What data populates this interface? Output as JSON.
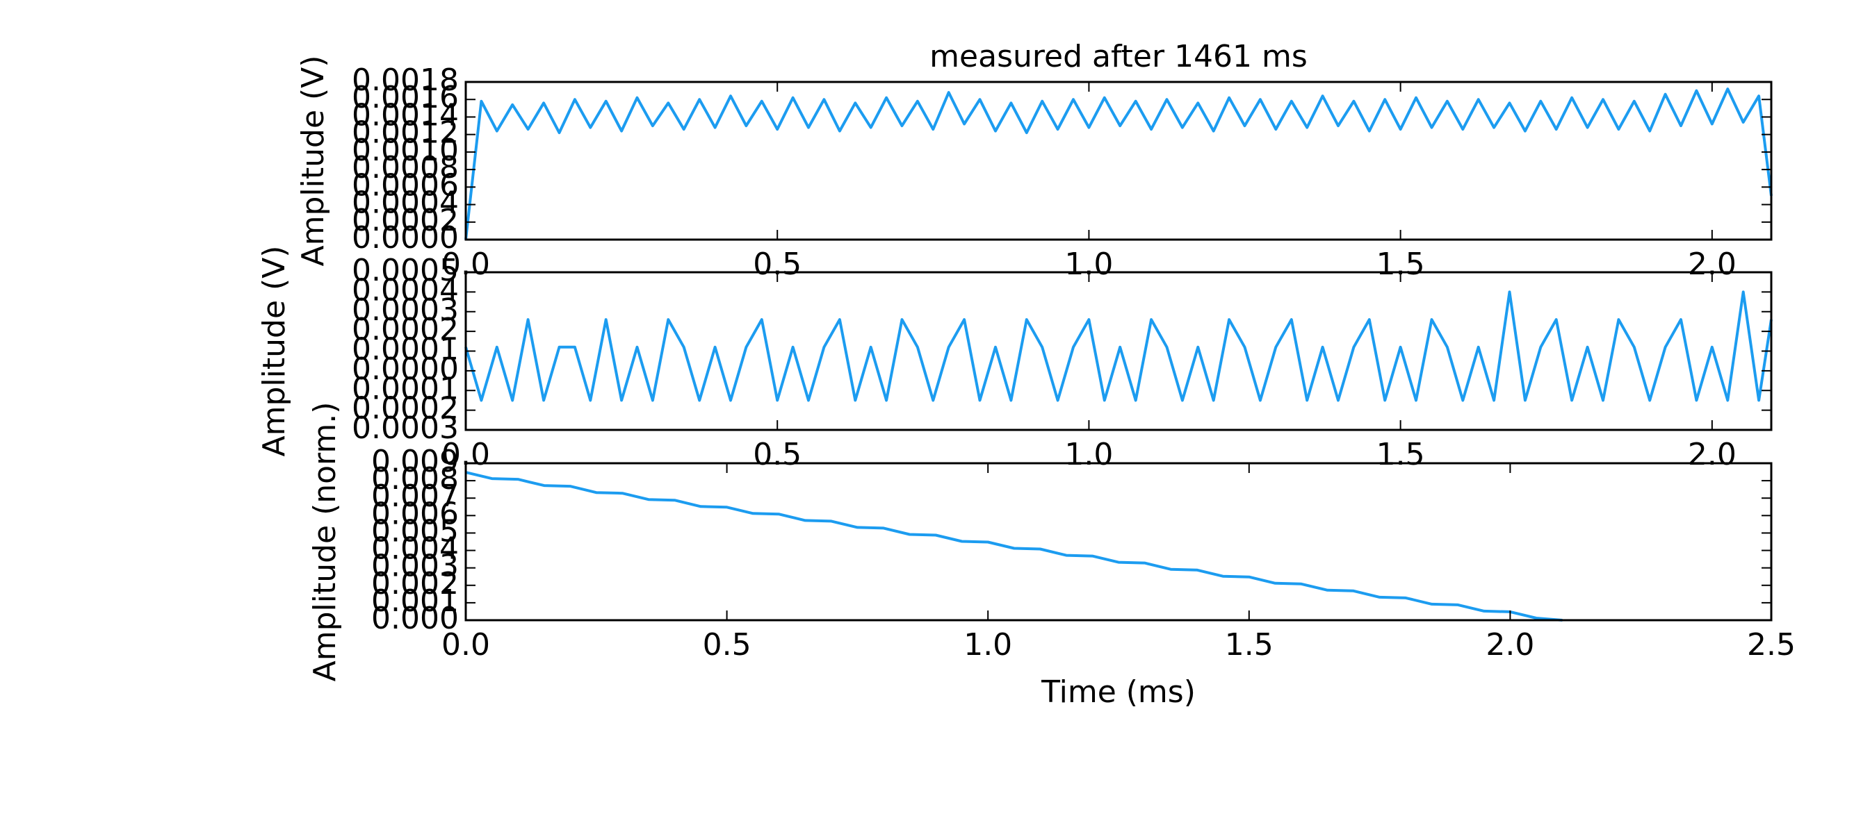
{
  "chart_data": [
    {
      "type": "line",
      "title": "measured after 1461 ms",
      "ylabel": "Amplitude (V)",
      "color": "#1c9cf0",
      "xlim": [
        0,
        2.095
      ],
      "ylim": [
        0,
        0.0018
      ],
      "xticks": [
        {
          "value": 0,
          "label": "0.0"
        },
        0.5,
        {
          "value": 1,
          "label": "1.0"
        },
        1.5,
        {
          "value": 2,
          "label": "2.0"
        }
      ],
      "yticks": [
        {
          "value": 0,
          "label": "0.0000"
        },
        0.0002,
        0.0004,
        0.0006,
        0.0008,
        {
          "value": 0.001,
          "label": "0.0010"
        },
        0.0012,
        0.0014,
        0.0016,
        0.0018
      ],
      "x": [
        0,
        0.025,
        0.05,
        0.075,
        0.1,
        0.125,
        0.15,
        0.175,
        0.2,
        0.225,
        0.25,
        0.275,
        0.3,
        0.325,
        0.35,
        0.375,
        0.4,
        0.425,
        0.45,
        0.475,
        0.5,
        0.525,
        0.55,
        0.575,
        0.6,
        0.625,
        0.65,
        0.675,
        0.7,
        0.725,
        0.75,
        0.775,
        0.8,
        0.825,
        0.85,
        0.875,
        0.9,
        0.925,
        0.95,
        0.975,
        1,
        1.025,
        1.05,
        1.075,
        1.1,
        1.125,
        1.15,
        1.175,
        1.2,
        1.225,
        1.25,
        1.275,
        1.3,
        1.325,
        1.35,
        1.375,
        1.4,
        1.425,
        1.45,
        1.475,
        1.5,
        1.525,
        1.55,
        1.575,
        1.6,
        1.625,
        1.65,
        1.675,
        1.7,
        1.725,
        1.75,
        1.775,
        1.8,
        1.825,
        1.85,
        1.875,
        1.9,
        1.925,
        1.95,
        1.975,
        2,
        2.025,
        2.05,
        2.075,
        2.095
      ],
      "values": [
        0,
        0.00158,
        0.00124,
        0.00154,
        0.00126,
        0.00156,
        0.00122,
        0.0016,
        0.00128,
        0.00158,
        0.00124,
        0.00162,
        0.0013,
        0.00156,
        0.00126,
        0.0016,
        0.00128,
        0.00164,
        0.0013,
        0.00158,
        0.00126,
        0.00162,
        0.00128,
        0.0016,
        0.00124,
        0.00156,
        0.00128,
        0.00162,
        0.0013,
        0.00158,
        0.00126,
        0.00168,
        0.00132,
        0.0016,
        0.00124,
        0.00156,
        0.00122,
        0.00158,
        0.00126,
        0.0016,
        0.00128,
        0.00162,
        0.0013,
        0.00158,
        0.00126,
        0.0016,
        0.00128,
        0.00156,
        0.00124,
        0.00162,
        0.0013,
        0.0016,
        0.00126,
        0.00158,
        0.00128,
        0.00164,
        0.0013,
        0.00158,
        0.00124,
        0.0016,
        0.00126,
        0.00162,
        0.00128,
        0.00158,
        0.00126,
        0.0016,
        0.00128,
        0.00156,
        0.00124,
        0.00158,
        0.00126,
        0.00162,
        0.00128,
        0.0016,
        0.00126,
        0.00158,
        0.00124,
        0.00166,
        0.0013,
        0.0017,
        0.00132,
        0.00172,
        0.00134,
        0.00164,
        0.0005
      ]
    },
    {
      "type": "line",
      "ylabel": "Amplitude (V)",
      "color": "#1c9cf0",
      "xlim": [
        0,
        2.095
      ],
      "ylim": [
        -0.0003,
        0.0005
      ],
      "xticks": [
        {
          "value": 0,
          "label": "0.0"
        },
        0.5,
        {
          "value": 1,
          "label": "1.0"
        },
        1.5,
        {
          "value": 2,
          "label": "2.0"
        }
      ],
      "yticks": [
        {
          "value": -0.0003,
          "label": "0.0003"
        },
        {
          "value": -0.0002,
          "label": "0.0002"
        },
        {
          "value": -0.0001,
          "label": "0.0001"
        },
        {
          "value": 0,
          "label": "0.0000"
        },
        0.0001,
        0.0002,
        0.0003,
        0.0004,
        0.0005
      ],
      "x": [
        0,
        0.025,
        0.05,
        0.075,
        0.1,
        0.125,
        0.15,
        0.175,
        0.2,
        0.225,
        0.25,
        0.275,
        0.3,
        0.325,
        0.35,
        0.375,
        0.4,
        0.425,
        0.45,
        0.475,
        0.5,
        0.525,
        0.55,
        0.575,
        0.6,
        0.625,
        0.65,
        0.675,
        0.7,
        0.725,
        0.75,
        0.775,
        0.8,
        0.825,
        0.85,
        0.875,
        0.9,
        0.925,
        0.95,
        0.975,
        1,
        1.025,
        1.05,
        1.075,
        1.1,
        1.125,
        1.15,
        1.175,
        1.2,
        1.225,
        1.25,
        1.275,
        1.3,
        1.325,
        1.35,
        1.375,
        1.4,
        1.425,
        1.45,
        1.475,
        1.5,
        1.525,
        1.55,
        1.575,
        1.6,
        1.625,
        1.65,
        1.675,
        1.7,
        1.725,
        1.75,
        1.775,
        1.8,
        1.825,
        1.85,
        1.875,
        1.9,
        1.925,
        1.95,
        1.975,
        2,
        2.025,
        2.05,
        2.075,
        2.095
      ],
      "values": [
        0.00012,
        -0.00015,
        0.00012,
        -0.00015,
        0.00026,
        -0.00015,
        0.00012,
        0.00012,
        -0.00015,
        0.00026,
        -0.00015,
        0.00012,
        -0.00015,
        0.00026,
        0.00012,
        -0.00015,
        0.00012,
        -0.00015,
        0.00012,
        0.00026,
        -0.00015,
        0.00012,
        -0.00015,
        0.00012,
        0.00026,
        -0.00015,
        0.00012,
        -0.00015,
        0.00026,
        0.00012,
        -0.00015,
        0.00012,
        0.00026,
        -0.00015,
        0.00012,
        -0.00015,
        0.00026,
        0.00012,
        -0.00015,
        0.00012,
        0.00026,
        -0.00015,
        0.00012,
        -0.00015,
        0.00026,
        0.00012,
        -0.00015,
        0.00012,
        -0.00015,
        0.00026,
        0.00012,
        -0.00015,
        0.00012,
        0.00026,
        -0.00015,
        0.00012,
        -0.00015,
        0.00012,
        0.00026,
        -0.00015,
        0.00012,
        -0.00015,
        0.00026,
        0.00012,
        -0.00015,
        0.00012,
        -0.00015,
        0.0004,
        -0.00015,
        0.00012,
        0.00026,
        -0.00015,
        0.00012,
        -0.00015,
        0.00026,
        0.00012,
        -0.00015,
        0.00012,
        0.00026,
        -0.00015,
        0.00012,
        -0.00015,
        0.0004,
        -0.00015,
        0.00026
      ]
    },
    {
      "type": "line",
      "ylabel": "Amplitude (norm.)",
      "xlabel": "Time (ms)",
      "color": "#1c9cf0",
      "xlim": [
        0,
        2.5
      ],
      "ylim": [
        0,
        0.009
      ],
      "xticks": [
        {
          "value": 0,
          "label": "0.0"
        },
        0.5,
        {
          "value": 1,
          "label": "1.0"
        },
        1.5,
        {
          "value": 2,
          "label": "2.0"
        },
        2.5
      ],
      "yticks": [
        {
          "value": 0,
          "label": "0.000"
        },
        0.001,
        0.002,
        0.003,
        0.004,
        0.005,
        0.006,
        0.007,
        0.008,
        0.009
      ],
      "x": [
        0,
        0.05,
        0.1,
        0.15,
        0.2,
        0.25,
        0.3,
        0.35,
        0.4,
        0.45,
        0.5,
        0.55,
        0.6,
        0.65,
        0.7,
        0.75,
        0.8,
        0.85,
        0.9,
        0.95,
        1,
        1.05,
        1.1,
        1.15,
        1.2,
        1.25,
        1.3,
        1.35,
        1.4,
        1.45,
        1.5,
        1.55,
        1.6,
        1.65,
        1.7,
        1.75,
        1.8,
        1.85,
        1.9,
        1.95,
        2,
        2.05,
        2.1
      ],
      "values": [
        0.00848,
        0.00812,
        0.00808,
        0.00772,
        0.00768,
        0.00732,
        0.00728,
        0.00692,
        0.00688,
        0.00652,
        0.00648,
        0.00612,
        0.00608,
        0.00572,
        0.00568,
        0.00532,
        0.00528,
        0.00492,
        0.00488,
        0.00452,
        0.00448,
        0.00412,
        0.00408,
        0.00372,
        0.00368,
        0.00332,
        0.00328,
        0.00292,
        0.00288,
        0.00252,
        0.00248,
        0.00212,
        0.00208,
        0.00172,
        0.00168,
        0.00132,
        0.00128,
        0.00092,
        0.00088,
        0.00052,
        0.00048,
        0.00012,
        0
      ]
    }
  ]
}
